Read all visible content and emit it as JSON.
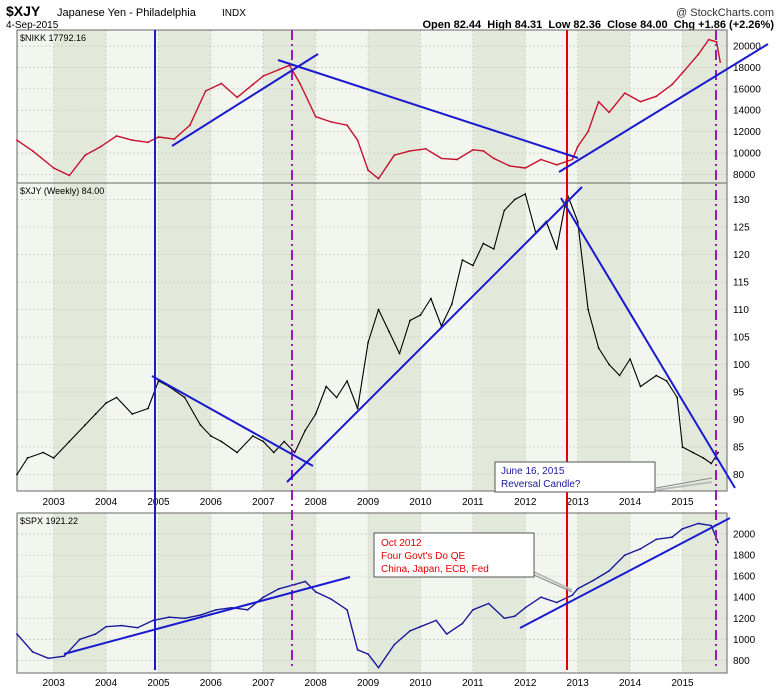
{
  "header": {
    "symbol": "$XJY",
    "name": "Japanese Yen - Philadelphia",
    "exchange": "INDX",
    "date": "4-Sep-2015",
    "brand": "@ StockCharts.com",
    "ohlc_text": "Open 82.44  High 84.31  Low 82.36  Close 84.00  Chg +1.86 (+2.26%)"
  },
  "colors": {
    "panel_bg_light": "#f2f6ee",
    "panel_bg_dark": "#e2e9db",
    "grid": "#c8ccc4",
    "nikkei_line": "#c8102e",
    "xjy_line": "#000000",
    "spx_line": "#1a1a9c",
    "trend": "#1a1ad0",
    "red_marker": "#e00000",
    "purple_marker": "#9a1ab8",
    "callout_text_blue": "#1a1a9c",
    "callout_text_red": "#e00000"
  },
  "chart_data": [
    {
      "type": "line",
      "title": "$NIKK 17792.16",
      "x_range": [
        2002.3,
        2015.85
      ],
      "ylim": [
        7200,
        21500
      ],
      "y_ticks": [
        8000,
        10000,
        12000,
        14000,
        16000,
        18000,
        20000
      ],
      "series": [
        {
          "name": "$NIKK",
          "x": [
            2002.3,
            2002.6,
            2003.0,
            2003.3,
            2003.6,
            2003.9,
            2004.2,
            2004.5,
            2004.8,
            2005.0,
            2005.3,
            2005.6,
            2005.9,
            2006.2,
            2006.5,
            2006.8,
            2007.0,
            2007.3,
            2007.5,
            2007.7,
            2008.0,
            2008.3,
            2008.6,
            2008.8,
            2009.0,
            2009.2,
            2009.5,
            2009.8,
            2010.1,
            2010.4,
            2010.7,
            2011.0,
            2011.2,
            2011.4,
            2011.7,
            2012.0,
            2012.3,
            2012.6,
            2012.9,
            2013.0,
            2013.2,
            2013.4,
            2013.6,
            2013.9,
            2014.2,
            2014.5,
            2014.8,
            2015.0,
            2015.3,
            2015.5,
            2015.65,
            2015.72
          ],
          "values": [
            11200,
            10200,
            8600,
            7900,
            9800,
            10600,
            11600,
            11200,
            11000,
            11500,
            11300,
            12600,
            15800,
            16500,
            15200,
            16400,
            17200,
            17800,
            18200,
            16500,
            13400,
            12900,
            12600,
            11200,
            8400,
            7600,
            9800,
            10200,
            10400,
            9500,
            9400,
            10300,
            10200,
            9500,
            8800,
            8600,
            9400,
            8900,
            9400,
            10600,
            12000,
            14800,
            13800,
            15600,
            14800,
            15300,
            16400,
            17500,
            19200,
            20600,
            20400,
            18500
          ]
        }
      ]
    },
    {
      "type": "line",
      "title": "$XJY (Weekly) 84.00",
      "x_range": [
        2002.3,
        2015.85
      ],
      "ylim": [
        77,
        133
      ],
      "y_ticks": [
        80,
        85,
        90,
        95,
        100,
        105,
        110,
        115,
        120,
        125,
        130
      ],
      "x_ticks": [
        "2003",
        "2004",
        "2005",
        "2006",
        "2007",
        "2008",
        "2009",
        "2010",
        "2011",
        "2012",
        "2013",
        "2014",
        "2015"
      ],
      "series": [
        {
          "name": "$XJY",
          "x": [
            2002.3,
            2002.5,
            2002.8,
            2003.0,
            2003.3,
            2003.6,
            2003.8,
            2004.0,
            2004.2,
            2004.5,
            2004.8,
            2005.0,
            2005.2,
            2005.5,
            2005.8,
            2006.0,
            2006.2,
            2006.5,
            2006.8,
            2007.0,
            2007.2,
            2007.4,
            2007.6,
            2007.8,
            2008.0,
            2008.2,
            2008.4,
            2008.6,
            2008.8,
            2009.0,
            2009.2,
            2009.4,
            2009.6,
            2009.8,
            2010.0,
            2010.2,
            2010.4,
            2010.6,
            2010.8,
            2011.0,
            2011.2,
            2011.4,
            2011.6,
            2011.8,
            2012.0,
            2012.2,
            2012.4,
            2012.6,
            2012.8,
            2013.0,
            2013.2,
            2013.4,
            2013.6,
            2013.8,
            2014.0,
            2014.2,
            2014.5,
            2014.7,
            2014.9,
            2015.0,
            2015.2,
            2015.4,
            2015.55,
            2015.68
          ],
          "values": [
            80,
            83,
            84,
            83,
            86,
            89,
            91,
            93,
            94,
            91,
            92,
            97,
            96,
            94,
            89,
            87,
            86,
            84,
            87,
            86,
            84,
            86,
            84,
            88,
            91,
            96,
            94,
            97,
            92,
            104,
            110,
            106,
            102,
            108,
            109,
            112,
            107,
            111,
            119,
            118,
            122,
            121,
            128,
            130,
            131,
            124,
            126,
            121,
            131,
            126,
            110,
            103,
            100,
            98,
            101,
            96,
            98,
            97,
            94,
            85,
            84,
            83,
            82,
            84
          ]
        }
      ]
    },
    {
      "type": "line",
      "title": "$SPX 1921.22",
      "x_range": [
        2002.3,
        2015.85
      ],
      "ylim": [
        680,
        2200
      ],
      "y_ticks": [
        800,
        1000,
        1200,
        1400,
        1600,
        1800,
        2000
      ],
      "x_ticks": [
        "2003",
        "2004",
        "2005",
        "2006",
        "2007",
        "2008",
        "2009",
        "2010",
        "2011",
        "2012",
        "2013",
        "2014",
        "2015"
      ],
      "series": [
        {
          "name": "$SPX",
          "x": [
            2002.3,
            2002.6,
            2002.9,
            2003.2,
            2003.5,
            2003.8,
            2004.0,
            2004.3,
            2004.6,
            2004.9,
            2005.2,
            2005.5,
            2005.8,
            2006.1,
            2006.4,
            2006.7,
            2007.0,
            2007.3,
            2007.6,
            2007.8,
            2008.0,
            2008.3,
            2008.6,
            2008.8,
            2009.0,
            2009.2,
            2009.5,
            2009.8,
            2010.0,
            2010.3,
            2010.5,
            2010.8,
            2011.0,
            2011.3,
            2011.6,
            2011.8,
            2012.0,
            2012.3,
            2012.6,
            2012.9,
            2013.0,
            2013.3,
            2013.6,
            2013.9,
            2014.2,
            2014.5,
            2014.8,
            2015.0,
            2015.3,
            2015.55,
            2015.68
          ],
          "values": [
            1050,
            880,
            820,
            840,
            1000,
            1050,
            1120,
            1130,
            1110,
            1180,
            1210,
            1200,
            1230,
            1280,
            1300,
            1280,
            1400,
            1480,
            1520,
            1550,
            1450,
            1380,
            1280,
            900,
            860,
            730,
            950,
            1080,
            1120,
            1180,
            1050,
            1150,
            1280,
            1340,
            1200,
            1220,
            1300,
            1400,
            1350,
            1420,
            1480,
            1560,
            1650,
            1800,
            1860,
            1950,
            1970,
            2050,
            2100,
            2080,
            1920
          ]
        }
      ]
    }
  ],
  "annotations": {
    "yen_callout": [
      "June 16, 2015",
      "Reversal Candle?"
    ],
    "spx_callout": [
      "Oct 2012",
      "Four Govt's Do QE",
      "China, Japan, ECB, Fed"
    ]
  }
}
